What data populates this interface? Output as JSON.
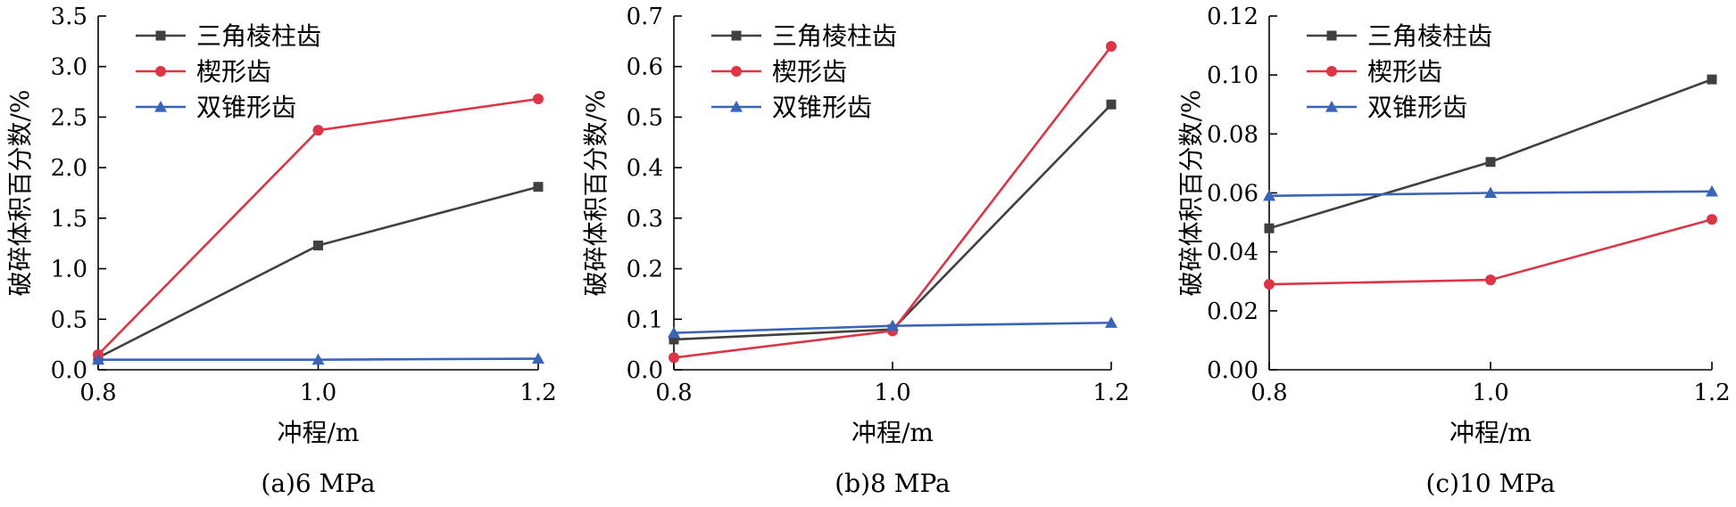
{
  "chart_data": [
    {
      "type": "line",
      "caption": "(a)6 MPa",
      "xlabel": "冲程/m",
      "ylabel": "破碎体积百分数/%",
      "x": [
        0.8,
        1.0,
        1.2
      ],
      "x_ticks": [
        "0.8",
        "1.0",
        "1.2"
      ],
      "xlim": [
        0.8,
        1.2
      ],
      "ylim": [
        0,
        3.5
      ],
      "y_ticks": [
        "0.0",
        "0.5",
        "1.0",
        "1.5",
        "2.0",
        "2.5",
        "3.0",
        "3.5"
      ],
      "grid": false,
      "legend_position": "top-left",
      "series": [
        {
          "name": "三角棱柱齿",
          "marker": "square",
          "color": "#404040",
          "values": [
            0.12,
            1.23,
            1.81
          ]
        },
        {
          "name": "楔形齿",
          "marker": "circle",
          "color": "#dc3545",
          "values": [
            0.15,
            2.37,
            2.68
          ]
        },
        {
          "name": "双锥形齿",
          "marker": "triangle",
          "color": "#3a64b8",
          "values": [
            0.1,
            0.1,
            0.11
          ]
        }
      ]
    },
    {
      "type": "line",
      "caption": "(b)8 MPa",
      "xlabel": "冲程/m",
      "ylabel": "破碎体积百分数/%",
      "x": [
        0.8,
        1.0,
        1.2
      ],
      "x_ticks": [
        "0.8",
        "1.0",
        "1.2"
      ],
      "xlim": [
        0.8,
        1.2
      ],
      "ylim": [
        0,
        0.7
      ],
      "y_ticks": [
        "0.0",
        "0.1",
        "0.2",
        "0.3",
        "0.4",
        "0.5",
        "0.6",
        "0.7"
      ],
      "grid": false,
      "legend_position": "top-left",
      "series": [
        {
          "name": "三角棱柱齿",
          "marker": "square",
          "color": "#404040",
          "values": [
            0.06,
            0.08,
            0.525
          ]
        },
        {
          "name": "楔形齿",
          "marker": "circle",
          "color": "#dc3545",
          "values": [
            0.024,
            0.077,
            0.64
          ]
        },
        {
          "name": "双锥形齿",
          "marker": "triangle",
          "color": "#3a64b8",
          "values": [
            0.073,
            0.087,
            0.093
          ]
        }
      ]
    },
    {
      "type": "line",
      "caption": "(c)10 MPa",
      "xlabel": "冲程/m",
      "ylabel": "破碎体积百分数/%",
      "x": [
        0.8,
        1.0,
        1.2
      ],
      "x_ticks": [
        "0.8",
        "1.0",
        "1.2"
      ],
      "xlim": [
        0.8,
        1.2
      ],
      "ylim": [
        0,
        0.12
      ],
      "y_ticks": [
        "0.00",
        "0.02",
        "0.04",
        "0.06",
        "0.08",
        "0.10",
        "0.12"
      ],
      "grid": false,
      "legend_position": "top-left",
      "series": [
        {
          "name": "三角棱柱齿",
          "marker": "square",
          "color": "#404040",
          "values": [
            0.048,
            0.0705,
            0.0985
          ]
        },
        {
          "name": "楔形齿",
          "marker": "circle",
          "color": "#dc3545",
          "values": [
            0.029,
            0.0305,
            0.051
          ]
        },
        {
          "name": "双锥形齿",
          "marker": "triangle",
          "color": "#3a64b8",
          "values": [
            0.059,
            0.06,
            0.0605
          ]
        }
      ]
    }
  ]
}
